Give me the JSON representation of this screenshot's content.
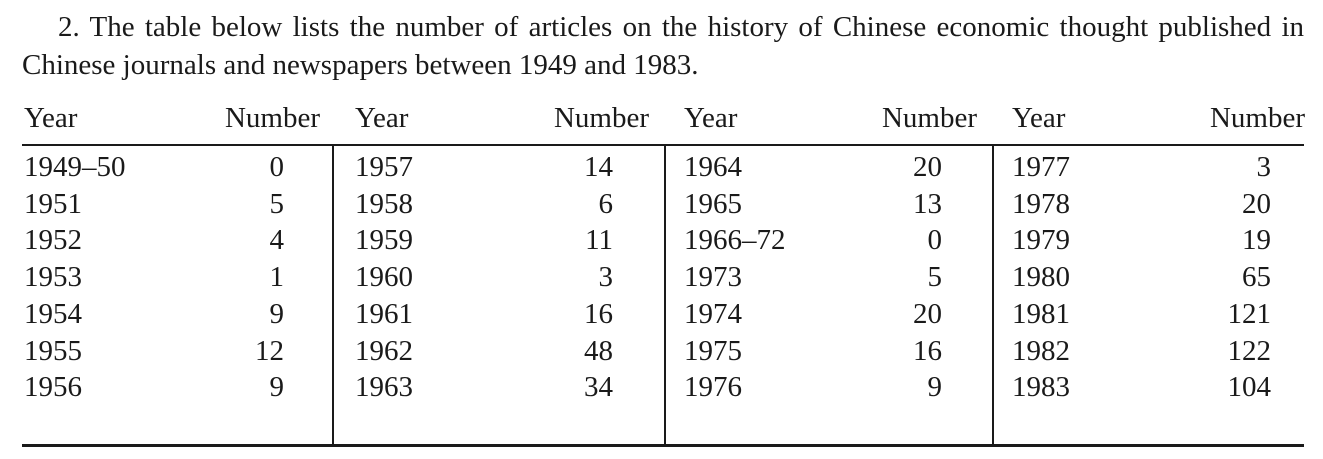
{
  "paragraph": {
    "number": "2.",
    "text": "The table below lists the number of articles on the history of Chinese economic thought published in Chinese journals and newspapers between 1949 and 1983."
  },
  "table": {
    "year_header": "Year",
    "number_header": "Number",
    "column_groups": [
      {
        "rows": [
          {
            "year": "1949–50",
            "number": "0"
          },
          {
            "year": "1951",
            "number": "5"
          },
          {
            "year": "1952",
            "number": "4"
          },
          {
            "year": "1953",
            "number": "1"
          },
          {
            "year": "1954",
            "number": "9"
          },
          {
            "year": "1955",
            "number": "12"
          },
          {
            "year": "1956",
            "number": "9"
          }
        ]
      },
      {
        "rows": [
          {
            "year": "1957",
            "number": "14"
          },
          {
            "year": "1958",
            "number": "6"
          },
          {
            "year": "1959",
            "number": "11"
          },
          {
            "year": "1960",
            "number": "3"
          },
          {
            "year": "1961",
            "number": "16"
          },
          {
            "year": "1962",
            "number": "48"
          },
          {
            "year": "1963",
            "number": "34"
          }
        ]
      },
      {
        "rows": [
          {
            "year": "1964",
            "number": "20"
          },
          {
            "year": "1965",
            "number": "13"
          },
          {
            "year": "1966–72",
            "number": "0"
          },
          {
            "year": "1973",
            "number": "5"
          },
          {
            "year": "1974",
            "number": "20"
          },
          {
            "year": "1975",
            "number": "16"
          },
          {
            "year": "1976",
            "number": "9"
          }
        ]
      },
      {
        "rows": [
          {
            "year": "1977",
            "number": "3"
          },
          {
            "year": "1978",
            "number": "20"
          },
          {
            "year": "1979",
            "number": "19"
          },
          {
            "year": "1980",
            "number": "65"
          },
          {
            "year": "1981",
            "number": "121"
          },
          {
            "year": "1982",
            "number": "122"
          },
          {
            "year": "1983",
            "number": "104"
          }
        ]
      }
    ]
  }
}
